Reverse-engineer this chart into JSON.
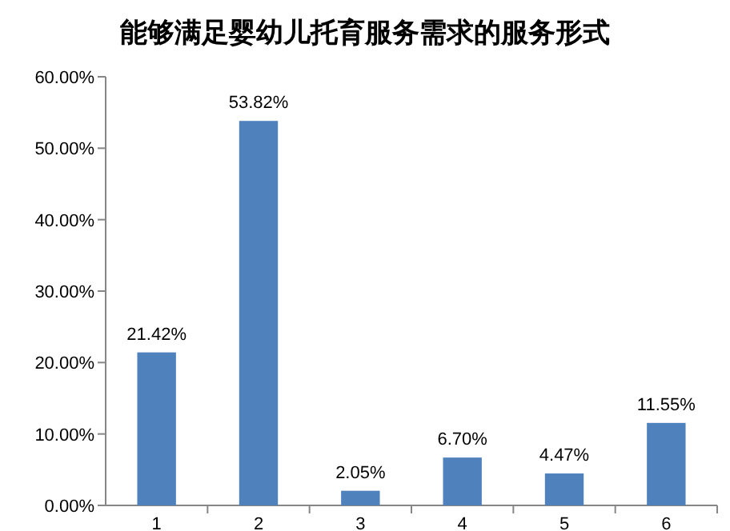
{
  "chart_data": {
    "type": "bar",
    "title": "能够满足婴幼儿托育服务需求的服务形式",
    "categories": [
      "1",
      "2",
      "3",
      "4",
      "5",
      "6"
    ],
    "values": [
      21.42,
      53.82,
      2.05,
      6.7,
      4.47,
      11.55
    ],
    "value_labels": [
      "21.42%",
      "53.82%",
      "2.05%",
      "6.70%",
      "4.47%",
      "11.55%"
    ],
    "color": "#4f81bd",
    "ylim": [
      0,
      60
    ],
    "yticks": [
      {
        "value": 0,
        "label": "0.00%"
      },
      {
        "value": 10,
        "label": "10.00%"
      },
      {
        "value": 20,
        "label": "20.00%"
      },
      {
        "value": 30,
        "label": "30.00%"
      },
      {
        "value": 40,
        "label": "40.00%"
      },
      {
        "value": 50,
        "label": "50.00%"
      },
      {
        "value": 60,
        "label": "60.00%"
      }
    ],
    "grid": false
  }
}
